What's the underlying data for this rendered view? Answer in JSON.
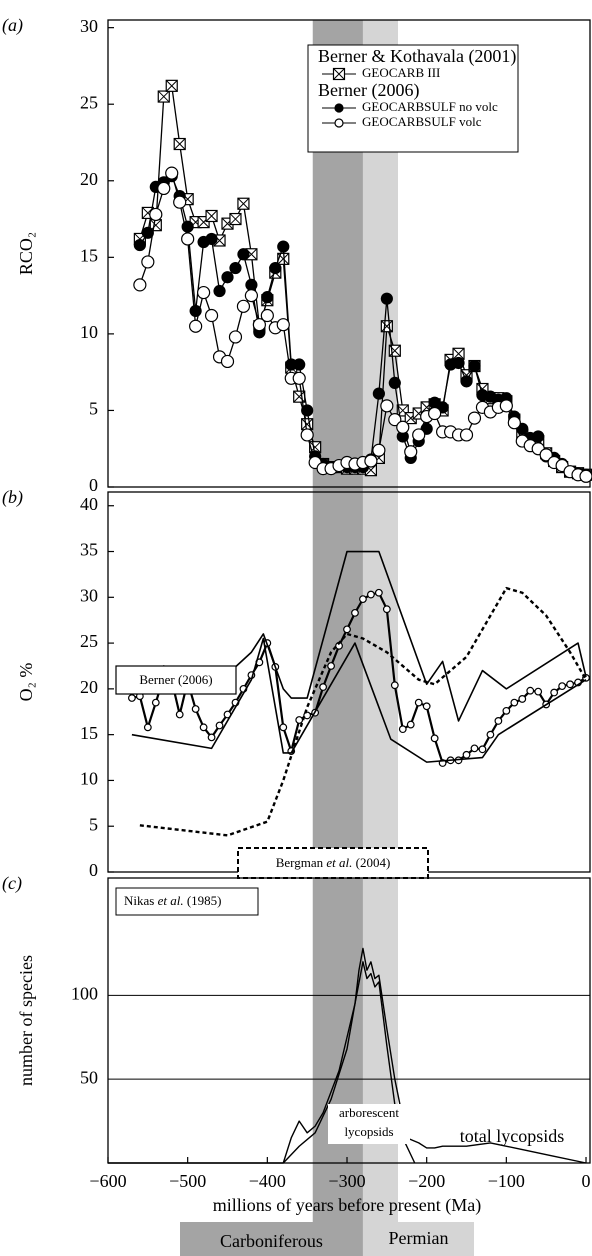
{
  "periods": [
    {
      "label": "Carboniferous",
      "start": -343,
      "end": -280,
      "color": "#a4a4a4"
    },
    {
      "label": "Permian",
      "start": -280,
      "end": -236,
      "color": "#d5d5d5"
    }
  ],
  "x_label": "millions of years before present (Ma)",
  "chart_data": [
    {
      "type": "line",
      "panel_label": "(a)",
      "y_label": "RCO₂",
      "xlim": [
        -600,
        5
      ],
      "ylim": [
        0,
        30.5
      ],
      "yticks": [
        0,
        5,
        10,
        15,
        20,
        25,
        30
      ],
      "legend_titles": [
        "Berner & Kothavala (2001)",
        "Berner (2006)"
      ],
      "x": [
        -560,
        -550,
        -540,
        -530,
        -520,
        -510,
        -500,
        -490,
        -480,
        -470,
        -460,
        -450,
        -440,
        -430,
        -420,
        -410,
        -400,
        -390,
        -380,
        -370,
        -360,
        -350,
        -340,
        -330,
        -320,
        -310,
        -300,
        -290,
        -280,
        -270,
        -260,
        -250,
        -240,
        -230,
        -220,
        -210,
        -200,
        -190,
        -180,
        -170,
        -160,
        -150,
        -140,
        -130,
        -120,
        -110,
        -100,
        -90,
        -80,
        -70,
        -60,
        -50,
        -40,
        -30,
        -20,
        -10,
        0
      ],
      "series": [
        {
          "name": "GEOCARB III",
          "color": "#000000",
          "marker": "boxx",
          "values": [
            16.2,
            17.9,
            17.1,
            25.5,
            26.2,
            22.4,
            18.8,
            17.3,
            17.3,
            17.7,
            16.1,
            17.2,
            17.5,
            18.5,
            15.2,
            10.5,
            12.2,
            14,
            14.9,
            7.8,
            5.9,
            4.1,
            2.6,
            1.5,
            1.3,
            1.3,
            1.2,
            1.2,
            1.2,
            1.1,
            1.9,
            10.5,
            8.9,
            5,
            4.5,
            4.8,
            5.2,
            5.4,
            5,
            8.3,
            8.7,
            7.3,
            7.9,
            6.4,
            5.8,
            5.8,
            5.6,
            4.4,
            3.4,
            3.1,
            3,
            2.2,
            1.7,
            1.3,
            1,
            0.9,
            0.8
          ]
        },
        {
          "name": "GEOCARBSULF no volc",
          "color": "#000000",
          "marker": "filled",
          "values": [
            15.8,
            16.6,
            19.6,
            19.9,
            20.3,
            19,
            17,
            11.5,
            16,
            16.2,
            12.8,
            13.7,
            14.3,
            15.2,
            13.2,
            10.1,
            12.4,
            14.3,
            15.7,
            8,
            8,
            5,
            2,
            1.5,
            1.3,
            1.4,
            1.3,
            1.3,
            1.3,
            1.8,
            6.1,
            12.3,
            6.8,
            3.3,
            1.9,
            3,
            3.8,
            5.5,
            5.2,
            8,
            8.1,
            6.9,
            7.9,
            6,
            5.9,
            5.7,
            5.8,
            4.6,
            3.8,
            3.2,
            3.3,
            2,
            1.9,
            1.5,
            1,
            0.9,
            0.8
          ]
        },
        {
          "name": "GEOCARBSULF volc",
          "color": "#000000",
          "marker": "open",
          "values": [
            13.2,
            14.7,
            17.8,
            19.5,
            20.5,
            18.6,
            16.2,
            10.5,
            12.7,
            11.2,
            8.5,
            8.2,
            9.8,
            11.8,
            12.5,
            10.6,
            11.2,
            10.4,
            10.6,
            7.1,
            7.1,
            3.4,
            1.6,
            1.2,
            1.2,
            1.4,
            1.6,
            1.5,
            1.6,
            1.7,
            2.4,
            5.3,
            4.4,
            3.9,
            2.3,
            3.4,
            4.6,
            4.8,
            3.6,
            3.6,
            3.4,
            3.4,
            4.5,
            5.2,
            4.9,
            5.2,
            5.3,
            4.2,
            3,
            2.7,
            2.5,
            2.1,
            1.6,
            1.4,
            1,
            0.8,
            0.7
          ]
        }
      ]
    },
    {
      "type": "line",
      "panel_label": "(b)",
      "y_label": "O₂ %",
      "xlim": [
        -600,
        5
      ],
      "ylim": [
        0,
        41.5
      ],
      "yticks": [
        0,
        5,
        10,
        15,
        20,
        25,
        30,
        35,
        40
      ],
      "berner_label": "Berner (2006)",
      "bergman_label": [
        "Bergman ",
        "et al.",
        " (2004)"
      ],
      "series": [
        {
          "color": "#000000",
          "marker": "small-open",
          "width": 2.2,
          "x": [
            -570,
            -560,
            -550,
            -540,
            -530,
            -520,
            -510,
            -500,
            -490,
            -480,
            -470,
            -460,
            -450,
            -440,
            -430,
            -420,
            -410,
            -400,
            -390,
            -380,
            -370,
            -360,
            -350,
            -340,
            -330,
            -320,
            -310,
            -300,
            -290,
            -280,
            -270,
            -260,
            -250,
            -240,
            -230,
            -220,
            -210,
            -200,
            -190,
            -180,
            -170,
            -160,
            -150,
            -140,
            -130,
            -120,
            -110,
            -100,
            -90,
            -80,
            -70,
            -60,
            -50,
            -40,
            -30,
            -20,
            -10,
            0
          ],
          "values": [
            19,
            19.2,
            15.8,
            18.5,
            21.3,
            20.9,
            17.2,
            20.8,
            17.8,
            15.8,
            14.7,
            16,
            17.2,
            18.5,
            20,
            21.5,
            22.9,
            25,
            22.4,
            15.8,
            13.2,
            16.6,
            17.1,
            17.4,
            20.2,
            22.5,
            24.7,
            26.5,
            28.3,
            29.8,
            30.3,
            30.5,
            28.7,
            20.4,
            15.6,
            16.1,
            18.5,
            18.1,
            14.6,
            11.9,
            12.2,
            12.2,
            12.8,
            13.5,
            13.4,
            15,
            16.5,
            17.6,
            18.5,
            18.9,
            19.8,
            19.7,
            18.3,
            19.6,
            20.3,
            20.5,
            20.7,
            21.2
          ]
        },
        {
          "color": "#000000",
          "width": 1.6,
          "x": [
            -570,
            -530,
            -510,
            -470,
            -420,
            -405,
            -380,
            -370,
            -350,
            -300,
            -260,
            -200,
            -180,
            -160,
            -130,
            -100,
            -10,
            0
          ],
          "values": [
            20.5,
            22.5,
            22,
            20,
            24,
            26,
            20,
            19,
            19,
            35,
            35,
            20.5,
            23,
            16.5,
            22,
            20,
            25,
            21.3
          ]
        },
        {
          "color": "#000000",
          "width": 1.6,
          "x": [
            -570,
            -470,
            -420,
            -405,
            -380,
            -370,
            -290,
            -245,
            -200,
            -130,
            -110,
            0
          ],
          "values": [
            15,
            13.5,
            21,
            25.5,
            13,
            13,
            25,
            14.5,
            12,
            12.5,
            15,
            21
          ]
        },
        {
          "color": "#000000",
          "width": 2.4,
          "dash": true,
          "x": [
            -560,
            -500,
            -450,
            -400,
            -380,
            -350,
            -320,
            -300,
            -280,
            -250,
            -210,
            -190,
            -150,
            -120,
            -100,
            -80,
            -50,
            -20,
            0
          ],
          "values": [
            5.1,
            4.5,
            4,
            5.5,
            10,
            18,
            24,
            26,
            25.5,
            24,
            21,
            20.5,
            23.5,
            28,
            31,
            30.5,
            28,
            24,
            21
          ]
        }
      ]
    },
    {
      "type": "line",
      "panel_label": "(c)",
      "y_label": "number of species",
      "xlim": [
        -600,
        5
      ],
      "ylim": [
        0,
        170
      ],
      "yticks": [
        50,
        100
      ],
      "grid": true,
      "xticks": [
        {
          "value": -600,
          "label": "−600"
        },
        {
          "value": -500,
          "label": "−500"
        },
        {
          "value": -400,
          "label": "−400"
        },
        {
          "value": -300,
          "label": "−300"
        },
        {
          "value": -200,
          "label": "−200"
        },
        {
          "value": -100,
          "label": "−100"
        },
        0
      ],
      "source_label": [
        "Nikas ",
        "et al.",
        " (1985)"
      ],
      "arborescent_label": [
        "arborescent",
        "lycopsids"
      ],
      "total_label": "total lycopsids",
      "series": [
        {
          "color": "#000000",
          "width": 1.4,
          "x": [
            -600,
            -380,
            -370,
            -360,
            -350,
            -340,
            -330,
            -310,
            -300,
            -290,
            -285,
            -280,
            -275,
            -270,
            -265,
            -260,
            -250,
            -240,
            -225,
            -210,
            -200,
            -190,
            -180,
            -150,
            -120,
            -80,
            -40,
            0
          ],
          "values": [
            0,
            0,
            15,
            25,
            18,
            22,
            30,
            55,
            75,
            95,
            115,
            128,
            115,
            120,
            110,
            112,
            80,
            50,
            15,
            12,
            9,
            9,
            10,
            10,
            12,
            8,
            4,
            0
          ]
        },
        {
          "color": "#000000",
          "width": 1.4,
          "x": [
            -380,
            -360,
            -340,
            -320,
            -300,
            -290,
            -280,
            -275,
            -270,
            -265,
            -260,
            -250,
            -240,
            -230,
            -220,
            -215
          ],
          "values": [
            0,
            10,
            18,
            38,
            68,
            95,
            120,
            110,
            113,
            105,
            108,
            70,
            35,
            15,
            5,
            0
          ]
        }
      ]
    }
  ]
}
